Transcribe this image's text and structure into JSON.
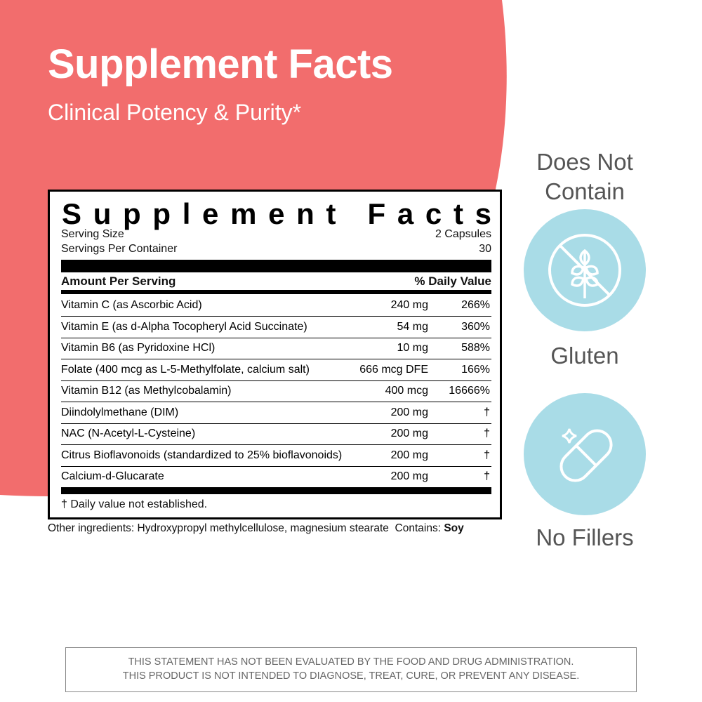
{
  "header": {
    "title": "Supplement Facts",
    "subtitle": "Clinical Potency & Purity*"
  },
  "facts": {
    "title": "Supplement Facts",
    "serving_size_label": "Serving Size",
    "serving_size": "2 Capsules",
    "servings_label": "Servings Per Container",
    "servings": "30",
    "amount_header": "Amount Per Serving",
    "dv_header": "% Daily Value",
    "rows": [
      [
        "Vitamin C (as Ascorbic Acid)",
        "240 mg",
        "266%"
      ],
      [
        "Vitamin E (as d-Alpha Tocopheryl Acid Succinate)",
        "54 mg",
        "360%"
      ],
      [
        "Vitamin B6 (as Pyridoxine HCl)",
        "10 mg",
        "588%"
      ],
      [
        "Folate (400 mcg as L-5-Methylfolate, calcium salt)",
        "666 mcg DFE",
        "166%"
      ],
      [
        "Vitamin B12 (as Methylcobalamin)",
        "400 mcg",
        "16666%"
      ],
      [
        "Diindolylmethane (DIM)",
        "200 mg",
        "†"
      ],
      [
        "NAC (N-Acetyl-L-Cysteine)",
        "200 mg",
        "†"
      ],
      [
        "Citrus Bioflavonoids (standardized to 25% bioflavonoids)",
        "200 mg",
        "†"
      ],
      [
        "Calcium-d-Glucarate",
        "200 mg",
        "†"
      ]
    ],
    "footnote": "† Daily value not established.",
    "other_ingredients": "Other ingredients: Hydroxypropyl methylcellulose, magnesium stearate",
    "contains_label": "Contains:",
    "contains": "Soy"
  },
  "badges": {
    "heading": "Does Not Contain",
    "items": [
      "Gluten",
      "No Fillers"
    ]
  },
  "disclaimer": [
    "THIS STATEMENT HAS NOT BEEN EVALUATED BY THE FOOD AND DRUG ADMINISTRATION.",
    "THIS PRODUCT IS NOT INTENDED TO DIAGNOSE, TREAT, CURE, OR PREVENT ANY DISEASE."
  ]
}
